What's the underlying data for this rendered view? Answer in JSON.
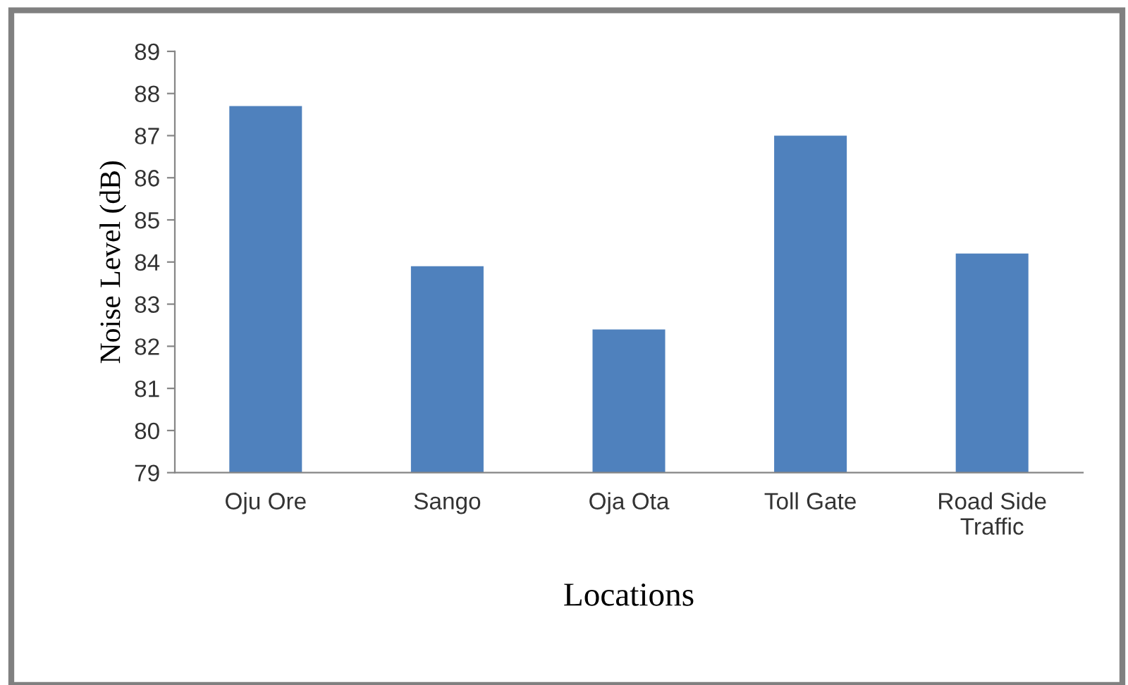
{
  "chart_data": {
    "type": "bar",
    "xlabel": "Locations",
    "ylabel": "Noise Level (dB)",
    "categories": [
      "Oju Ore",
      "Sango",
      "Oja Ota",
      "Toll Gate",
      "Road Side\nTraffic"
    ],
    "values": [
      87.7,
      83.9,
      82.4,
      87.0,
      84.2
    ],
    "color": "#4f81bd",
    "ylim": [
      79,
      89
    ],
    "yticks": [
      79,
      80,
      81,
      82,
      83,
      84,
      85,
      86,
      87,
      88,
      89
    ],
    "grid": false,
    "legend": false
  }
}
